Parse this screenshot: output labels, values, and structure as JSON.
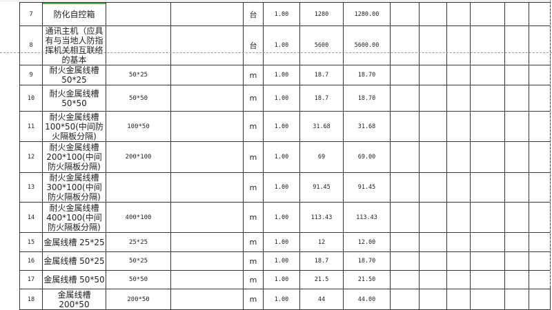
{
  "sheet": {
    "rows": [
      {
        "no": "7",
        "name": "防化自控箱",
        "spec": "",
        "extra": "",
        "unit": "台",
        "qty": "1.00",
        "price": "1280",
        "total": "1280.00"
      },
      {
        "no": "8",
        "name": "通讯主机（应具有与当地人防指挥机关相互联络的基本",
        "spec": "",
        "extra": "",
        "unit": "台",
        "qty": "1.00",
        "price": "5600",
        "total": "5600.00"
      },
      {
        "no": "9",
        "name": "耐火金属线槽 50*25",
        "spec": "50*25",
        "extra": "",
        "unit": "m",
        "qty": "1.00",
        "price": "18.7",
        "total": "18.70"
      },
      {
        "no": "10",
        "name": "耐火金属线槽 50*50",
        "spec": "50*50",
        "extra": "",
        "unit": "m",
        "qty": "1.00",
        "price": "18.7",
        "total": "18.70"
      },
      {
        "no": "11",
        "name": "耐火金属线槽 100*50(中间防火隔板分隔)",
        "spec": "100*50",
        "extra": "",
        "unit": "m",
        "qty": "1.00",
        "price": "31.68",
        "total": "31.68"
      },
      {
        "no": "12",
        "name": "耐火金属线槽 200*100(中间防火隔板分隔)",
        "spec": "200*100",
        "extra": "",
        "unit": "m",
        "qty": "1.00",
        "price": "69",
        "total": "69.00"
      },
      {
        "no": "13",
        "name": "耐火金属线槽 300*100(中间防火隔板分隔)",
        "spec": "",
        "extra": "",
        "unit": "m",
        "qty": "1.00",
        "price": "91.45",
        "total": "91.45"
      },
      {
        "no": "14",
        "name": "耐火金属线槽 400*100(中间防火隔板分隔)",
        "spec": "400*100",
        "extra": "",
        "unit": "m",
        "qty": "1.00",
        "price": "113.43",
        "total": "113.43"
      },
      {
        "no": "15",
        "name": "金属线槽 25*25",
        "spec": "25*25",
        "extra": "",
        "unit": "m",
        "qty": "1.00",
        "price": "12",
        "total": "12.00"
      },
      {
        "no": "16",
        "name": "金属线槽 50*25",
        "spec": "50*25",
        "extra": "",
        "unit": "m",
        "qty": "1.00",
        "price": "18.7",
        "total": "18.70"
      },
      {
        "no": "17",
        "name": "金属线槽 50*50",
        "spec": "50*50",
        "extra": "",
        "unit": "m",
        "qty": "1.00",
        "price": "21.5",
        "total": "21.50"
      },
      {
        "no": "18",
        "name": "金属线槽 200*50",
        "spec": "200*50",
        "extra": "",
        "unit": "m",
        "qty": "1.00",
        "price": "44",
        "total": "44.00"
      }
    ],
    "colors": {
      "grid": "#333333",
      "selection": "#4caf50",
      "page_break": "#999999"
    }
  }
}
